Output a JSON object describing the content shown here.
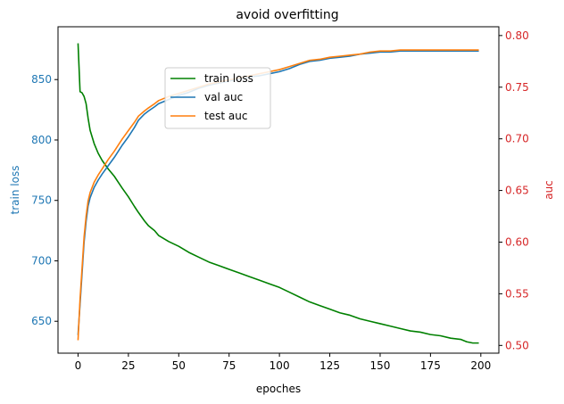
{
  "chart_data": {
    "type": "line",
    "title": "avoid overfitting",
    "xlabel": "epoches",
    "ylabel_left": "train loss",
    "ylabel_right": "auc",
    "xlim": [
      -9.95,
      208.95
    ],
    "ylim_left": [
      623.6,
      893.7
    ],
    "ylim_right": [
      0.4925,
      0.8085
    ],
    "xticks": [
      0,
      25,
      50,
      75,
      100,
      125,
      150,
      175,
      200
    ],
    "yticks_left": [
      650,
      700,
      750,
      800,
      850
    ],
    "yticks_right": [
      0.5,
      0.55,
      0.6,
      0.65,
      0.7,
      0.75,
      0.8
    ],
    "yticklabels_right": [
      "0.50",
      "0.55",
      "0.60",
      "0.65",
      "0.70",
      "0.75",
      "0.80"
    ],
    "left_axis_color": "#1f77b4",
    "right_axis_color": "#d62728",
    "legend_position": "upper center-left",
    "grid": false,
    "series": [
      {
        "name": "train loss",
        "axis": "left",
        "color": "#008000",
        "x": [
          0,
          1,
          2,
          3,
          4,
          5,
          6,
          8,
          10,
          12,
          15,
          18,
          20,
          22,
          25,
          28,
          30,
          33,
          35,
          38,
          40,
          45,
          50,
          55,
          60,
          65,
          70,
          75,
          80,
          85,
          90,
          95,
          100,
          105,
          110,
          115,
          120,
          125,
          130,
          135,
          140,
          145,
          150,
          155,
          160,
          165,
          170,
          175,
          180,
          185,
          190,
          193,
          196,
          199
        ],
        "y": [
          880,
          840,
          839,
          836,
          830,
          818,
          808,
          797,
          789,
          783,
          776,
          770,
          765,
          760,
          753,
          745,
          740,
          733,
          729,
          725,
          721,
          716,
          712,
          707,
          703,
          699,
          696,
          693,
          690,
          687,
          684,
          681,
          678,
          674,
          670,
          666,
          663,
          660,
          657,
          655,
          652,
          650,
          648,
          646,
          644,
          642,
          641,
          639,
          638,
          636,
          635,
          633,
          632,
          632
        ]
      },
      {
        "name": "val auc",
        "axis": "right",
        "color": "#1f77b4",
        "x": [
          0,
          1,
          2,
          3,
          4,
          5,
          6,
          8,
          10,
          12,
          15,
          18,
          20,
          22,
          25,
          28,
          30,
          33,
          35,
          38,
          40,
          45,
          50,
          55,
          60,
          65,
          70,
          75,
          80,
          85,
          90,
          95,
          100,
          105,
          110,
          115,
          120,
          125,
          130,
          135,
          140,
          145,
          150,
          155,
          160,
          165,
          170,
          175,
          180,
          185,
          190,
          193,
          196,
          199
        ],
        "y": [
          0.51,
          0.54,
          0.57,
          0.6,
          0.62,
          0.635,
          0.643,
          0.653,
          0.66,
          0.666,
          0.674,
          0.682,
          0.688,
          0.694,
          0.702,
          0.711,
          0.718,
          0.724,
          0.727,
          0.731,
          0.734,
          0.738,
          0.742,
          0.745,
          0.749,
          0.752,
          0.754,
          0.756,
          0.758,
          0.76,
          0.761,
          0.763,
          0.765,
          0.768,
          0.772,
          0.775,
          0.776,
          0.778,
          0.779,
          0.78,
          0.782,
          0.783,
          0.784,
          0.784,
          0.785,
          0.785,
          0.785,
          0.785,
          0.785,
          0.785,
          0.785,
          0.785,
          0.785,
          0.785
        ]
      },
      {
        "name": "test auc",
        "axis": "right",
        "color": "#ff7f0e",
        "x": [
          0,
          1,
          2,
          3,
          4,
          5,
          6,
          8,
          10,
          12,
          15,
          18,
          20,
          22,
          25,
          28,
          30,
          33,
          35,
          38,
          40,
          45,
          50,
          55,
          60,
          65,
          70,
          75,
          80,
          85,
          90,
          95,
          100,
          105,
          110,
          115,
          120,
          125,
          130,
          135,
          140,
          145,
          150,
          155,
          160,
          165,
          170,
          175,
          180,
          185,
          190,
          193,
          196,
          199
        ],
        "y": [
          0.505,
          0.545,
          0.575,
          0.605,
          0.625,
          0.64,
          0.648,
          0.658,
          0.665,
          0.671,
          0.68,
          0.688,
          0.694,
          0.7,
          0.708,
          0.716,
          0.722,
          0.727,
          0.73,
          0.734,
          0.737,
          0.741,
          0.744,
          0.747,
          0.75,
          0.753,
          0.755,
          0.757,
          0.759,
          0.761,
          0.763,
          0.765,
          0.767,
          0.77,
          0.773,
          0.776,
          0.777,
          0.779,
          0.78,
          0.781,
          0.782,
          0.784,
          0.785,
          0.785,
          0.786,
          0.786,
          0.786,
          0.786,
          0.786,
          0.786,
          0.786,
          0.786,
          0.786,
          0.786
        ]
      }
    ]
  }
}
